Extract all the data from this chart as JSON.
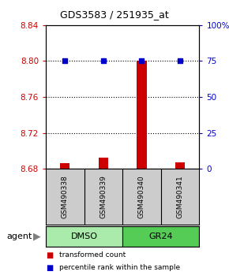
{
  "title": "GDS3583 / 251935_at",
  "samples": [
    "GSM490338",
    "GSM490339",
    "GSM490340",
    "GSM490341"
  ],
  "bar_values": [
    8.686,
    8.692,
    8.8,
    8.687
  ],
  "percentile_values": [
    75,
    75,
    75,
    75
  ],
  "ylim": [
    8.68,
    8.84
  ],
  "yticks": [
    8.68,
    8.72,
    8.76,
    8.8,
    8.84
  ],
  "ytick_labels": [
    "8.68",
    "8.72",
    "8.76",
    "8.80",
    "8.84"
  ],
  "y2lim": [
    0,
    100
  ],
  "y2ticks": [
    0,
    25,
    50,
    75,
    100
  ],
  "y2tick_labels": [
    "0",
    "25",
    "50",
    "75",
    "100%"
  ],
  "bar_color": "#cc0000",
  "dot_color": "#0000cc",
  "bar_width": 0.25,
  "sample_box_color": "#cccccc",
  "dmso_color": "#aaeaaa",
  "gr24_color": "#55cc55",
  "group_spans": [
    {
      "label": "DMSO",
      "start": 0,
      "end": 2,
      "color": "#aaeaaa"
    },
    {
      "label": "GR24",
      "start": 2,
      "end": 4,
      "color": "#55cc55"
    }
  ],
  "legend_items": [
    {
      "color": "#cc0000",
      "label": "transformed count"
    },
    {
      "color": "#0000cc",
      "label": "percentile rank within the sample"
    }
  ]
}
